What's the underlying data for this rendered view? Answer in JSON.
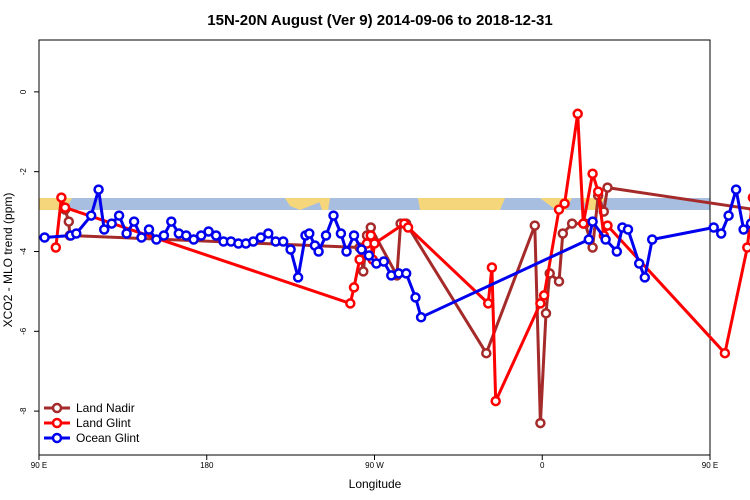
{
  "chart_data": {
    "type": "line",
    "title": "15N-20N August (Ver 9)   2014-09-06 to 2018-12-31",
    "xlabel": "Longitude",
    "ylabel": "XCO2 - MLO trend (ppm)",
    "xlim": [
      90,
      450
    ],
    "ylim": [
      -9.1,
      1.3
    ],
    "x_ticks": [
      {
        "value": 90,
        "label": "90 E"
      },
      {
        "value": 180,
        "label": "180"
      },
      {
        "value": 270,
        "label": "90 W"
      },
      {
        "value": 360,
        "label": "0"
      },
      {
        "value": 450,
        "label": "90 E"
      },
      {
        "value": 540,
        "label": "180"
      }
    ],
    "y_ticks": [
      {
        "value": 0,
        "label": "0"
      },
      {
        "value": -2,
        "label": "-2"
      },
      {
        "value": -4,
        "label": "-4"
      },
      {
        "value": -6,
        "label": "-6"
      },
      {
        "value": -8,
        "label": "-8"
      }
    ],
    "legend_position": "bottom-left",
    "land_band": {
      "y_top": -2.52,
      "y_bottom": -2.8,
      "ocean_color": "#a8bee0",
      "land_color": "#f5d67a"
    },
    "series": [
      {
        "name": "Land Nadir",
        "color": "#a52a2a",
        "points": [
          [
            104,
            -2.95
          ],
          [
            106,
            -3.25
          ],
          [
            106.5,
            -3.6
          ],
          [
            262,
            -3.9
          ],
          [
            264,
            -4.5
          ],
          [
            266,
            -3.6
          ],
          [
            268,
            -3.4
          ],
          [
            282,
            -4.6
          ],
          [
            284,
            -3.3
          ],
          [
            287,
            -3.3
          ],
          [
            330,
            -6.55
          ],
          [
            356,
            -3.35
          ],
          [
            359,
            -8.3
          ],
          [
            362,
            -5.55
          ],
          [
            364,
            -4.55
          ],
          [
            369,
            -4.75
          ],
          [
            371,
            -3.55
          ],
          [
            376,
            -3.3
          ],
          [
            383,
            -3.3
          ],
          [
            387,
            -3.9
          ],
          [
            390,
            -2.6
          ],
          [
            393,
            -3.0
          ],
          [
            395,
            -2.4
          ],
          [
            474,
            -2.95
          ],
          [
            476,
            -3.25
          ]
        ]
      },
      {
        "name": "Land Glint",
        "color": "#ff0000",
        "points": [
          [
            99,
            -3.9
          ],
          [
            102,
            -2.65
          ],
          [
            104,
            -2.9
          ],
          [
            257,
            -5.3
          ],
          [
            259,
            -4.9
          ],
          [
            262,
            -4.2
          ],
          [
            266,
            -3.8
          ],
          [
            268,
            -3.6
          ],
          [
            269,
            -4.2
          ],
          [
            270,
            -3.8
          ],
          [
            286,
            -3.3
          ],
          [
            288,
            -3.4
          ],
          [
            331,
            -5.3
          ],
          [
            333,
            -4.4
          ],
          [
            335,
            -7.75
          ],
          [
            359,
            -5.3
          ],
          [
            361,
            -5.1
          ],
          [
            369,
            -2.95
          ],
          [
            372,
            -2.8
          ],
          [
            379,
            -0.55
          ],
          [
            382,
            -3.3
          ],
          [
            387,
            -2.05
          ],
          [
            390,
            -2.5
          ],
          [
            393,
            -3.6
          ],
          [
            395,
            -3.35
          ],
          [
            458,
            -6.55
          ],
          [
            470,
            -3.9
          ],
          [
            473,
            -2.65
          ],
          [
            474,
            -2.95
          ]
        ]
      },
      {
        "name": "Ocean Glint",
        "color": "#0000ee",
        "points": [
          [
            93,
            -3.65
          ],
          [
            107,
            -3.6
          ],
          [
            110,
            -3.55
          ],
          [
            118,
            -3.1
          ],
          [
            122,
            -2.45
          ],
          [
            125,
            -3.45
          ],
          [
            129,
            -3.3
          ],
          [
            133,
            -3.1
          ],
          [
            137,
            -3.55
          ],
          [
            141,
            -3.25
          ],
          [
            145,
            -3.65
          ],
          [
            149,
            -3.45
          ],
          [
            153,
            -3.7
          ],
          [
            157,
            -3.6
          ],
          [
            161,
            -3.25
          ],
          [
            165,
            -3.55
          ],
          [
            169,
            -3.6
          ],
          [
            173,
            -3.7
          ],
          [
            177,
            -3.6
          ],
          [
            181,
            -3.5
          ],
          [
            185,
            -3.6
          ],
          [
            189,
            -3.75
          ],
          [
            193,
            -3.75
          ],
          [
            197,
            -3.8
          ],
          [
            201,
            -3.8
          ],
          [
            205,
            -3.75
          ],
          [
            209,
            -3.65
          ],
          [
            213,
            -3.55
          ],
          [
            217,
            -3.75
          ],
          [
            221,
            -3.75
          ],
          [
            225,
            -3.95
          ],
          [
            229,
            -4.65
          ],
          [
            233,
            -3.6
          ],
          [
            235,
            -3.55
          ],
          [
            238,
            -3.85
          ],
          [
            240,
            -4.0
          ],
          [
            244,
            -3.6
          ],
          [
            248,
            -3.1
          ],
          [
            252,
            -3.55
          ],
          [
            255,
            -4.0
          ],
          [
            259,
            -3.6
          ],
          [
            263,
            -3.95
          ],
          [
            267,
            -4.1
          ],
          [
            271,
            -4.3
          ],
          [
            275,
            -4.25
          ],
          [
            279,
            -4.6
          ],
          [
            283,
            -4.55
          ],
          [
            287,
            -4.55
          ],
          [
            292,
            -5.15
          ],
          [
            295,
            -5.65
          ],
          [
            385,
            -3.7
          ],
          [
            387,
            -3.25
          ],
          [
            394,
            -3.7
          ],
          [
            400,
            -4.0
          ],
          [
            403,
            -3.4
          ],
          [
            406,
            -3.45
          ],
          [
            412,
            -4.3
          ],
          [
            415,
            -4.65
          ],
          [
            419,
            -3.7
          ],
          [
            452,
            -3.4
          ],
          [
            456,
            -3.55
          ],
          [
            460,
            -3.1
          ],
          [
            464,
            -2.45
          ],
          [
            468,
            -3.45
          ],
          [
            472,
            -3.3
          ],
          [
            476,
            -3.1
          ]
        ]
      }
    ]
  }
}
